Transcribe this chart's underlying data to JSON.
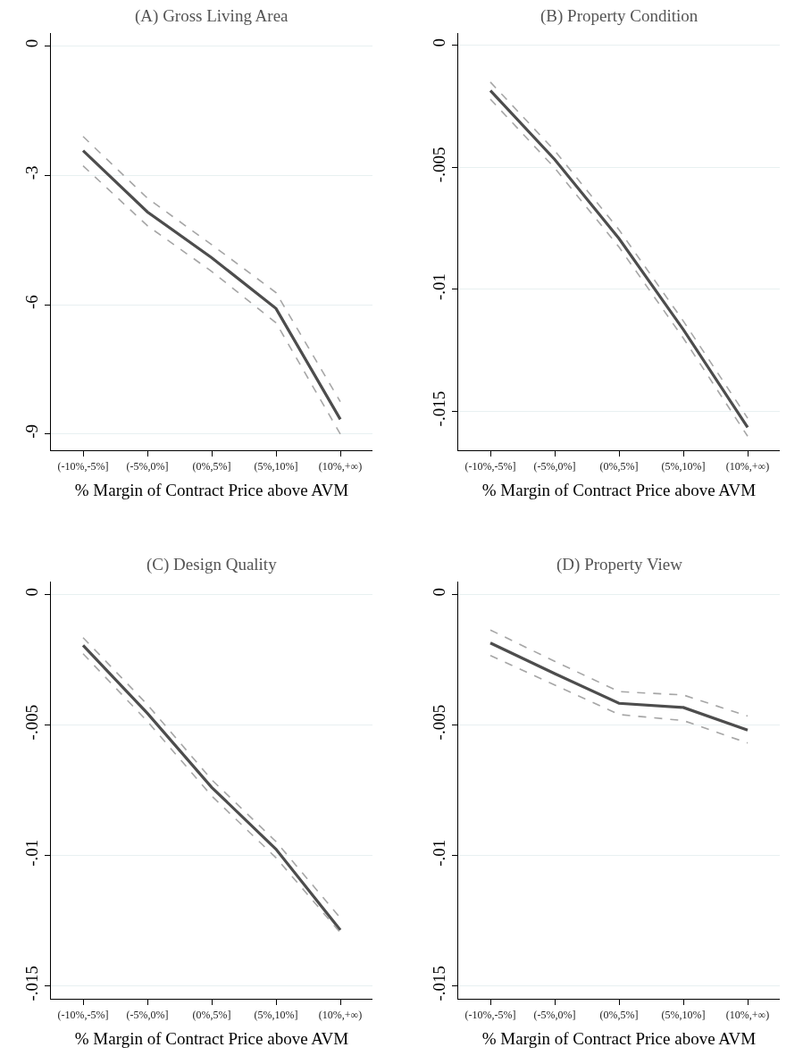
{
  "chart_data": [
    {
      "type": "line",
      "title": "(A) Gross Living Area",
      "xlabel": "% Margin of Contract Price above AVM",
      "categories": [
        "(-10%,-5%]",
        "(-5%,0%]",
        "(0%,5%]",
        "(5%,10%]",
        "(10%,+∞)"
      ],
      "ylim": [
        -9.38,
        0.3
      ],
      "yticks": [
        0,
        -3,
        -6,
        -9
      ],
      "grid": "y",
      "series": [
        {
          "color": "#4d4d4d",
          "line_style": "solid",
          "values": [
            -2.43,
            -3.85,
            -4.91,
            -6.09,
            -8.66
          ]
        },
        {
          "color": "#a6a6a6",
          "line_style": "dashed",
          "values": [
            -2.1,
            -3.53,
            -4.61,
            -5.72,
            -8.25
          ]
        },
        {
          "color": "#a6a6a6",
          "line_style": "dashed",
          "values": [
            -2.78,
            -4.17,
            -5.23,
            -6.42,
            -9.0
          ]
        }
      ]
    },
    {
      "type": "line",
      "title": "(B) Property Condition",
      "xlabel": "% Margin of Contract Price above AVM",
      "categories": [
        "(-10%,-5%]",
        "(-5%,0%]",
        "(0%,5%]",
        "(5%,10%]",
        "(10%,+∞)"
      ],
      "ylim": [
        -0.0166,
        0.0005
      ],
      "yticks": [
        0,
        {
          "value": -0.005,
          "label": "-.005"
        },
        {
          "value": -0.01,
          "label": "-.01"
        },
        {
          "value": -0.015,
          "label": "-.015"
        }
      ],
      "grid": "y",
      "series": [
        {
          "color": "#4d4d4d",
          "line_style": "solid",
          "values": [
            -0.00186,
            -0.00468,
            -0.00792,
            -0.01165,
            -0.01566
          ]
        },
        {
          "color": "#a6a6a6",
          "line_style": "dashed",
          "values": [
            -0.00151,
            -0.00432,
            -0.00756,
            -0.0113,
            -0.01528
          ]
        },
        {
          "color": "#a6a6a6",
          "line_style": "dashed",
          "values": [
            -0.00221,
            -0.00503,
            -0.00827,
            -0.012,
            -0.01602
          ]
        }
      ]
    },
    {
      "type": "line",
      "title": "(C) Design Quality",
      "xlabel": "% Margin of Contract Price above AVM",
      "categories": [
        "(-10%,-5%]",
        "(-5%,0%]",
        "(0%,5%]",
        "(5%,10%]",
        "(10%,+∞)"
      ],
      "ylim": [
        -0.0155,
        0.0005
      ],
      "yticks": [
        0,
        {
          "value": -0.005,
          "label": "-.005"
        },
        {
          "value": -0.01,
          "label": "-.01"
        },
        {
          "value": -0.015,
          "label": "-.015"
        }
      ],
      "grid": "y",
      "series": [
        {
          "color": "#4d4d4d",
          "line_style": "solid",
          "values": [
            -0.00195,
            -0.00455,
            -0.00739,
            -0.00976,
            -0.01286
          ]
        },
        {
          "color": "#a6a6a6",
          "line_style": "dashed",
          "values": [
            -0.00165,
            -0.00422,
            -0.0071,
            -0.00947,
            -0.0124
          ]
        },
        {
          "color": "#a6a6a6",
          "line_style": "dashed",
          "values": [
            -0.00227,
            -0.00486,
            -0.00772,
            -0.01009,
            -0.01296
          ]
        }
      ]
    },
    {
      "type": "line",
      "title": "(D) Property View",
      "xlabel": "% Margin of Contract Price above AVM",
      "categories": [
        "(-10%,-5%]",
        "(-5%,0%]",
        "(0%,5%]",
        "(5%,10%]",
        "(10%,+∞)"
      ],
      "ylim": [
        -0.0155,
        0.0005
      ],
      "yticks": [
        0,
        {
          "value": -0.005,
          "label": "-.005"
        },
        {
          "value": -0.01,
          "label": "-.01"
        },
        {
          "value": -0.015,
          "label": "-.015"
        }
      ],
      "grid": "y",
      "series": [
        {
          "color": "#4d4d4d",
          "line_style": "solid",
          "values": [
            -0.00186,
            -0.00303,
            -0.00417,
            -0.00433,
            -0.0052
          ]
        },
        {
          "color": "#a6a6a6",
          "line_style": "dashed",
          "values": [
            -0.00136,
            -0.00256,
            -0.00372,
            -0.00385,
            -0.00466
          ]
        },
        {
          "color": "#a6a6a6",
          "line_style": "dashed",
          "values": [
            -0.00234,
            -0.00347,
            -0.0046,
            -0.00483,
            -0.00569
          ]
        }
      ]
    }
  ]
}
